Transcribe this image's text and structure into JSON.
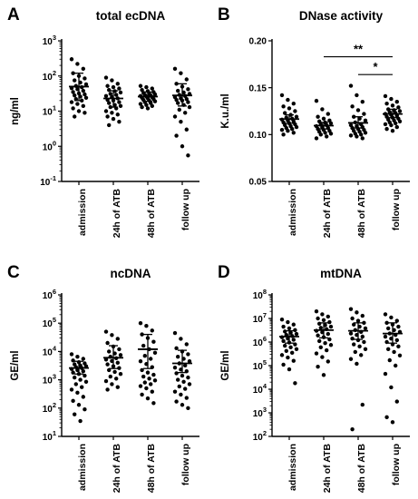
{
  "chart_data": [
    {
      "panel": "A",
      "type": "scatter",
      "title": "total ecDNA",
      "ylabel": "ng/ml",
      "yscale": "log",
      "ylim": [
        0.1,
        1000
      ],
      "yticks": [
        "10^-1",
        "10^0",
        "10^1",
        "10^2",
        "10^3"
      ],
      "categories": [
        "admission",
        "24h of ATB",
        "48h of ATB",
        "follow up"
      ],
      "summary": [
        {
          "mean": 50,
          "lower": 20,
          "upper": 120
        },
        {
          "mean": 23,
          "lower": 13,
          "upper": 38
        },
        {
          "mean": 26,
          "lower": 19,
          "upper": 35
        },
        {
          "mean": 28,
          "lower": 14,
          "upper": 60
        }
      ],
      "points": [
        [
          300,
          220,
          160,
          120,
          100,
          85,
          75,
          65,
          58,
          52,
          48,
          45,
          42,
          38,
          35,
          32,
          30,
          28,
          26,
          24,
          22,
          20,
          18,
          16,
          14,
          12,
          10,
          9,
          7
        ],
        [
          90,
          75,
          60,
          52,
          48,
          44,
          40,
          37,
          34,
          31,
          29,
          27,
          25,
          23,
          21,
          20,
          18,
          17,
          15,
          14,
          13,
          12,
          10,
          9,
          8,
          7,
          6,
          5,
          4
        ],
        [
          52,
          48,
          44,
          40,
          37,
          35,
          33,
          31,
          30,
          29,
          28,
          27,
          26,
          25,
          24,
          23,
          22,
          21,
          20,
          19,
          18,
          17,
          16,
          15,
          14,
          13,
          12
        ],
        [
          160,
          120,
          80,
          60,
          50,
          42,
          38,
          34,
          31,
          29,
          27,
          25,
          23,
          22,
          21,
          20,
          18,
          17,
          15,
          13,
          11,
          9,
          7,
          5,
          3,
          2,
          1,
          0.55
        ]
      ]
    },
    {
      "panel": "B",
      "type": "scatter",
      "title": "DNase activity",
      "ylabel": "K.u./ml",
      "yscale": "linear",
      "ylim": [
        0.05,
        0.2
      ],
      "yticks": [
        "0.05",
        "0.10",
        "0.15",
        "0.20"
      ],
      "categories": [
        "admission",
        "24h of ATB",
        "48h of ATB",
        "follow up"
      ],
      "summary": [
        {
          "mean": 0.1165,
          "lower": 0.112,
          "upper": 0.121
        },
        {
          "mean": 0.1095,
          "lower": 0.106,
          "upper": 0.113
        },
        {
          "mean": 0.1125,
          "lower": 0.107,
          "upper": 0.119
        },
        {
          "mean": 0.122,
          "lower": 0.118,
          "upper": 0.127
        }
      ],
      "points": [
        [
          0.142,
          0.137,
          0.133,
          0.13,
          0.128,
          0.125,
          0.123,
          0.121,
          0.119,
          0.118,
          0.117,
          0.116,
          0.115,
          0.114,
          0.113,
          0.112,
          0.111,
          0.11,
          0.109,
          0.108,
          0.107,
          0.106,
          0.105,
          0.104,
          0.102,
          0.1
        ],
        [
          0.136,
          0.127,
          0.122,
          0.119,
          0.117,
          0.115,
          0.114,
          0.113,
          0.112,
          0.111,
          0.11,
          0.109,
          0.108,
          0.107,
          0.106,
          0.105,
          0.104,
          0.103,
          0.102,
          0.101,
          0.1,
          0.098,
          0.096
        ],
        [
          0.152,
          0.142,
          0.135,
          0.13,
          0.126,
          0.122,
          0.119,
          0.117,
          0.115,
          0.113,
          0.111,
          0.11,
          0.109,
          0.108,
          0.107,
          0.106,
          0.105,
          0.104,
          0.103,
          0.102,
          0.101,
          0.1,
          0.099,
          0.098,
          0.096
        ],
        [
          0.141,
          0.138,
          0.135,
          0.133,
          0.131,
          0.129,
          0.127,
          0.126,
          0.125,
          0.124,
          0.123,
          0.122,
          0.121,
          0.12,
          0.119,
          0.118,
          0.117,
          0.116,
          0.115,
          0.114,
          0.113,
          0.112,
          0.111,
          0.11,
          0.108,
          0.106,
          0.104
        ]
      ],
      "significance": [
        {
          "from": 1,
          "to": 3,
          "label": "**",
          "y": 0.183
        },
        {
          "from": 2,
          "to": 3,
          "label": "*",
          "y": 0.164
        }
      ]
    },
    {
      "panel": "C",
      "type": "scatter",
      "title": "ncDNA",
      "ylabel": "GE/ml",
      "yscale": "log",
      "ylim": [
        10,
        1000000
      ],
      "yticks": [
        "10^1",
        "10^2",
        "10^3",
        "10^4",
        "10^5",
        "10^6"
      ],
      "categories": [
        "admission",
        "24h of ATB",
        "48h of ATB",
        "follow up"
      ],
      "summary": [
        {
          "mean": 2600,
          "lower": 1600,
          "upper": 4500
        },
        {
          "mean": 6000,
          "lower": 2500,
          "upper": 16000
        },
        {
          "mean": 12000,
          "lower": 2500,
          "upper": 40000
        },
        {
          "mean": 3800,
          "lower": 1800,
          "upper": 11000
        }
      ],
      "points": [
        [
          8000,
          6500,
          5500,
          4800,
          4200,
          3800,
          3500,
          3200,
          3000,
          2800,
          2600,
          2400,
          2200,
          2000,
          1800,
          1600,
          1400,
          1200,
          1000,
          850,
          700,
          550,
          450,
          350,
          250,
          180,
          130,
          90,
          60,
          35
        ],
        [
          50000,
          38000,
          28000,
          20000,
          15000,
          12000,
          10000,
          8500,
          7500,
          6500,
          5800,
          5200,
          4600,
          4000,
          3500,
          3000,
          2600,
          2200,
          1900,
          1600,
          1300,
          1100,
          900,
          700,
          550,
          450
        ],
        [
          100000,
          80000,
          55000,
          40000,
          30000,
          22000,
          16000,
          12000,
          9000,
          7000,
          5500,
          4500,
          3600,
          2800,
          2200,
          1800,
          1500,
          1300,
          1100,
          950,
          800,
          700,
          600,
          500,
          380,
          300,
          220,
          150
        ],
        [
          45000,
          28000,
          18000,
          13000,
          10000,
          8000,
          6500,
          5500,
          4500,
          3800,
          3200,
          2700,
          2300,
          2000,
          1700,
          1400,
          1200,
          1000,
          850,
          700,
          580,
          480,
          380,
          300,
          230,
          170,
          130,
          100
        ]
      ]
    },
    {
      "panel": "D",
      "type": "scatter",
      "title": "mtDNA",
      "ylabel": "GE/ml",
      "yscale": "log",
      "ylim": [
        100,
        100000000
      ],
      "yticks": [
        "10^2",
        "10^3",
        "10^4",
        "10^5",
        "10^6",
        "10^7",
        "10^8"
      ],
      "categories": [
        "admission",
        "24h of ATB",
        "48h of ATB",
        "follow up"
      ],
      "summary": [
        {
          "mean": 1700000,
          "lower": 900000,
          "upper": 3000000
        },
        {
          "mean": 3200000,
          "lower": 1500000,
          "upper": 6500000
        },
        {
          "mean": 3000000,
          "lower": 1300000,
          "upper": 6500000
        },
        {
          "mean": 2300000,
          "lower": 900000,
          "upper": 6500000
        }
      ],
      "points": [
        [
          9000000,
          7000000,
          5500000,
          4500000,
          3800000,
          3200000,
          2800000,
          2500000,
          2200000,
          2000000,
          1800000,
          1600000,
          1400000,
          1250000,
          1100000,
          950000,
          800000,
          700000,
          600000,
          500000,
          420000,
          350000,
          280000,
          220000,
          160000,
          110000,
          70000,
          18000
        ],
        [
          20000000,
          15000000,
          12000000,
          10000000,
          8500000,
          7000000,
          6000000,
          5200000,
          4500000,
          4000000,
          3500000,
          3000000,
          2600000,
          2200000,
          1900000,
          1600000,
          1300000,
          1100000,
          900000,
          750000,
          600000,
          450000,
          330000,
          230000,
          150000,
          90000,
          40000
        ],
        [
          25000000,
          18000000,
          13000000,
          10000000,
          8000000,
          6500000,
          5500000,
          4500000,
          3800000,
          3200000,
          2700000,
          2300000,
          2000000,
          1700000,
          1400000,
          1200000,
          1000000,
          800000,
          650000,
          500000,
          380000,
          280000,
          190000,
          120000,
          2200,
          200
        ],
        [
          15000000,
          11000000,
          8000000,
          6500000,
          5500000,
          4500000,
          3800000,
          3200000,
          2700000,
          2300000,
          2000000,
          1700000,
          1400000,
          1200000,
          1000000,
          800000,
          650000,
          500000,
          380000,
          270000,
          170000,
          100000,
          45000,
          12000,
          3000,
          650,
          400
        ]
      ]
    }
  ],
  "colors": {
    "ink": "#000000",
    "background": "#ffffff"
  }
}
